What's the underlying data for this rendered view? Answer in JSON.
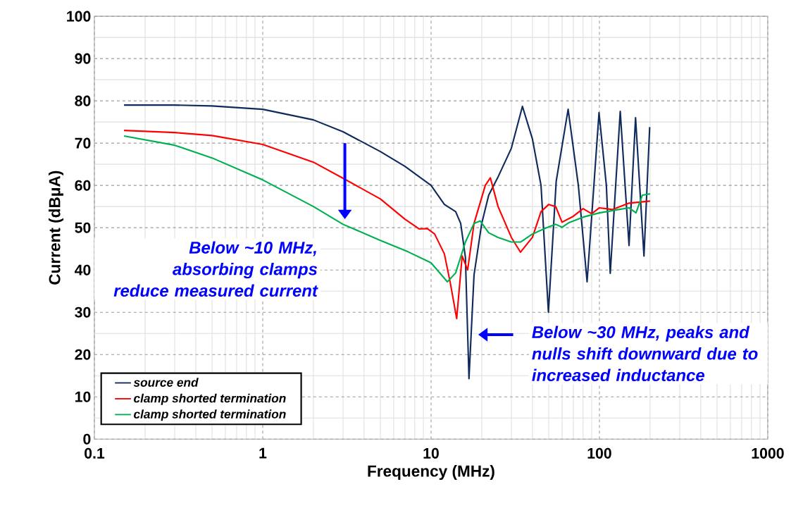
{
  "chart_data": {
    "type": "line",
    "xlabel": "Frequency (MHz)",
    "ylabel": "Current (dBμA)",
    "log": "x",
    "grid": true,
    "legend": "bottom left",
    "marker": "none",
    "line_style": "solid",
    "xlim": [
      0.1,
      1000
    ],
    "xticks": [
      0.1,
      1,
      10,
      100,
      1000
    ],
    "ylim": [
      0,
      100
    ],
    "yticks": [
      0,
      10,
      20,
      30,
      40,
      50,
      60,
      70,
      80,
      90,
      100
    ],
    "series": [
      {
        "name": "source end",
        "color": "#0f2a5c",
        "x": [
          0.15,
          0.3,
          0.5,
          1,
          2,
          3,
          5,
          7,
          10,
          12,
          14,
          15,
          16,
          16.8,
          18,
          20,
          22,
          25,
          30,
          34.9,
          40,
          45,
          49.8,
          55.4,
          65.2,
          75,
          84.5,
          99.5,
          110,
          116,
          133,
          150,
          164,
          184,
          199
        ],
        "values": [
          79,
          79,
          78.8,
          78,
          75.5,
          72.7,
          68,
          64.5,
          60,
          55.5,
          53.8,
          51,
          43,
          14.3,
          38.8,
          51,
          57.7,
          62,
          68.8,
          78.7,
          71,
          60,
          30,
          61,
          78,
          60,
          37.2,
          77.2,
          60,
          39.2,
          77.5,
          45.8,
          76,
          43.3,
          73.8
        ]
      },
      {
        "name": "clamp shorted termination",
        "color": "#ff0000",
        "x": [
          0.15,
          0.3,
          0.5,
          1,
          2,
          3,
          5,
          7,
          8.5,
          9.5,
          10.5,
          12,
          13,
          14.2,
          15.3,
          16.5,
          18,
          21,
          22.5,
          25,
          30,
          34,
          40,
          45,
          50,
          55,
          60,
          70,
          80,
          90,
          100,
          120,
          150,
          200
        ],
        "values": [
          73,
          72.5,
          71.8,
          69.7,
          65.5,
          61.7,
          56.8,
          52,
          49.7,
          49.8,
          48.5,
          43.8,
          37,
          28.5,
          43.3,
          40,
          51,
          60,
          61.8,
          55,
          47.7,
          44.2,
          47.7,
          53.8,
          55.5,
          55,
          51.3,
          52.7,
          54.5,
          53.3,
          54.7,
          54.3,
          55.8,
          56.3
        ]
      },
      {
        "name": "clamp shorted termination",
        "color": "#00b050",
        "x": [
          0.15,
          0.3,
          0.5,
          1,
          2,
          3,
          5,
          7.3,
          10,
          12.5,
          14,
          16,
          18,
          19.6,
          22,
          25,
          30,
          34,
          40,
          50,
          55,
          60,
          66,
          80,
          100,
          130,
          150,
          165,
          180,
          200
        ],
        "values": [
          71.7,
          69.5,
          66.5,
          61.3,
          55,
          50.8,
          47,
          44.3,
          41.7,
          37.2,
          39.3,
          46.6,
          51,
          51.6,
          48.8,
          47.7,
          46.6,
          46.6,
          48.5,
          50.2,
          50.8,
          50.1,
          51.2,
          52.5,
          53.5,
          54.3,
          54.7,
          53.5,
          57.7,
          58
        ]
      }
    ],
    "annotations": [
      "Below ~10 MHz, absorbing clamps reduce measured current",
      "Below ~30 MHz, peaks and nulls shift downward due to increased inductance"
    ]
  }
}
